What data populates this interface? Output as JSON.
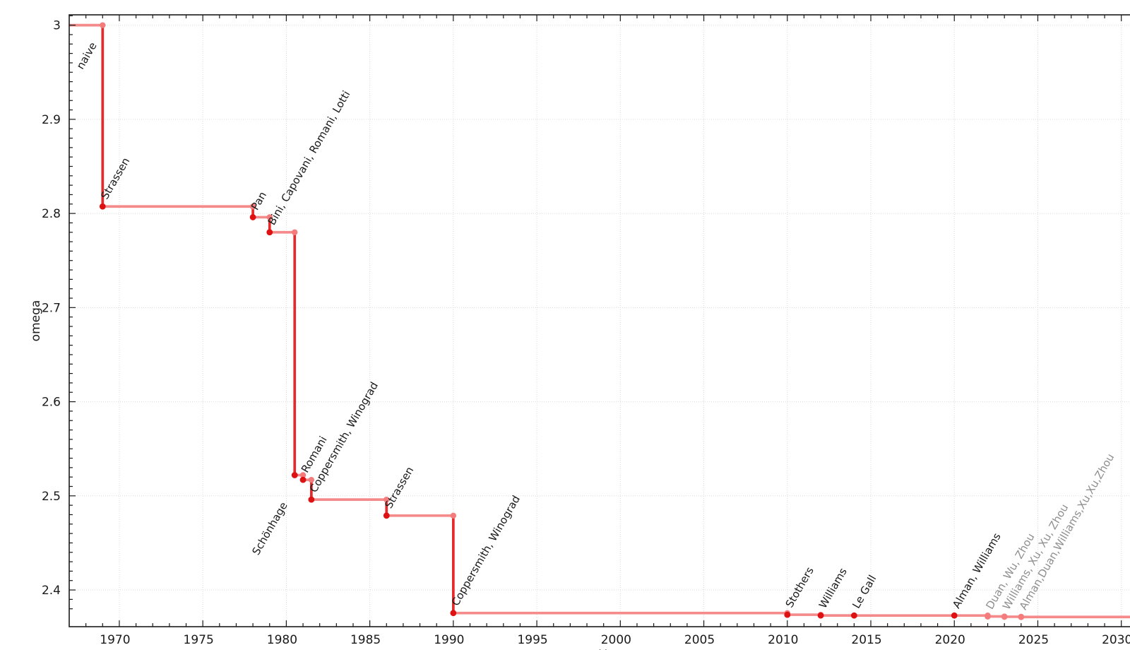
{
  "chart_data": {
    "type": "line",
    "subtype": "step",
    "title": "",
    "xlabel": "Year",
    "ylabel": "omega",
    "xlim": [
      1967,
      2032
    ],
    "ylim": [
      2.361,
      3.011
    ],
    "grid": true,
    "legend": "none",
    "x_ticks": [
      {
        "value": 1970,
        "label": "1970"
      },
      {
        "value": 1975,
        "label": "1975"
      },
      {
        "value": 1980,
        "label": "1980"
      },
      {
        "value": 1985,
        "label": "1985"
      },
      {
        "value": 1990,
        "label": "1990"
      },
      {
        "value": 1995,
        "label": "1995"
      },
      {
        "value": 2000,
        "label": "2000"
      },
      {
        "value": 2005,
        "label": "2005"
      },
      {
        "value": 2010,
        "label": "2010"
      },
      {
        "value": 2015,
        "label": "2015"
      },
      {
        "value": 2020,
        "label": "2020"
      },
      {
        "value": 2025,
        "label": "2025"
      },
      {
        "value": 2030,
        "label": "2030"
      }
    ],
    "y_ticks": [
      {
        "value": 2.4,
        "label": "2.4"
      },
      {
        "value": 2.5,
        "label": "2.5"
      },
      {
        "value": 2.6,
        "label": "2.6"
      },
      {
        "value": 2.7,
        "label": "2.7"
      },
      {
        "value": 2.8,
        "label": "2.8"
      },
      {
        "value": 2.9,
        "label": "2.9"
      },
      {
        "value": 3.0,
        "label": "3"
      }
    ],
    "x_minor_step": 1,
    "y_minor_step": 0.01,
    "initial": {
      "label": "naive",
      "omega": 3.0,
      "from_year": 1967
    },
    "end_year": 2032,
    "events": [
      {
        "label": "Strassen",
        "year": 1969,
        "omega": 2.8074,
        "muted": false,
        "label_side": "above"
      },
      {
        "label": "Pan",
        "year": 1978,
        "omega": 2.796,
        "muted": false,
        "label_side": "above"
      },
      {
        "label": "Bini, Capovani, Romani, Lotti",
        "year": 1979,
        "omega": 2.78,
        "muted": false,
        "label_side": "above"
      },
      {
        "label": "Schönhage",
        "year": 1980.5,
        "omega": 2.522,
        "muted": false,
        "label_side": "below"
      },
      {
        "label": "Romani",
        "year": 1981,
        "omega": 2.517,
        "muted": false,
        "label_side": "above"
      },
      {
        "label": "Coppersmith, Winograd",
        "year": 1981.5,
        "omega": 2.496,
        "muted": false,
        "label_side": "above"
      },
      {
        "label": "Strassen",
        "year": 1986,
        "omega": 2.479,
        "muted": false,
        "label_side": "above"
      },
      {
        "label": "Coppersmith, Winograd",
        "year": 1990,
        "omega": 2.3755,
        "muted": false,
        "label_side": "above"
      },
      {
        "label": "Stothers",
        "year": 2010,
        "omega": 2.3737,
        "muted": false,
        "label_side": "above"
      },
      {
        "label": "Williams",
        "year": 2012,
        "omega": 2.3729,
        "muted": false,
        "label_side": "above"
      },
      {
        "label": "Le Gall",
        "year": 2014,
        "omega": 2.3728639,
        "muted": false,
        "label_side": "above"
      },
      {
        "label": "Alman, Williams",
        "year": 2020,
        "omega": 2.3728596,
        "muted": false,
        "label_side": "above"
      },
      {
        "label": "Duan, Wu, Zhou",
        "year": 2022,
        "omega": 2.371866,
        "muted": true,
        "label_side": "above"
      },
      {
        "label": "Williams, Xu, Xu, Zhou",
        "year": 2023,
        "omega": 2.371552,
        "muted": true,
        "label_side": "above"
      },
      {
        "label": "Alman,Duan,Williams,Xu,Xu,Zhou",
        "year": 2024,
        "omega": 2.371339,
        "muted": true,
        "label_side": "above"
      }
    ]
  },
  "colors": {
    "step_horizontal": "#F48A8A",
    "step_vertical": "#E62A2A",
    "point": "#DE1212",
    "corner_point": "#F47C7C",
    "muted_point": "#F47C7C",
    "label": "#1A1A1A",
    "muted_label": "#8F8F8F",
    "grid": "#DBDBDB",
    "axis": "#1A1A1A",
    "tick_label": "#1A1A1A",
    "background": "#FFFFFF"
  }
}
